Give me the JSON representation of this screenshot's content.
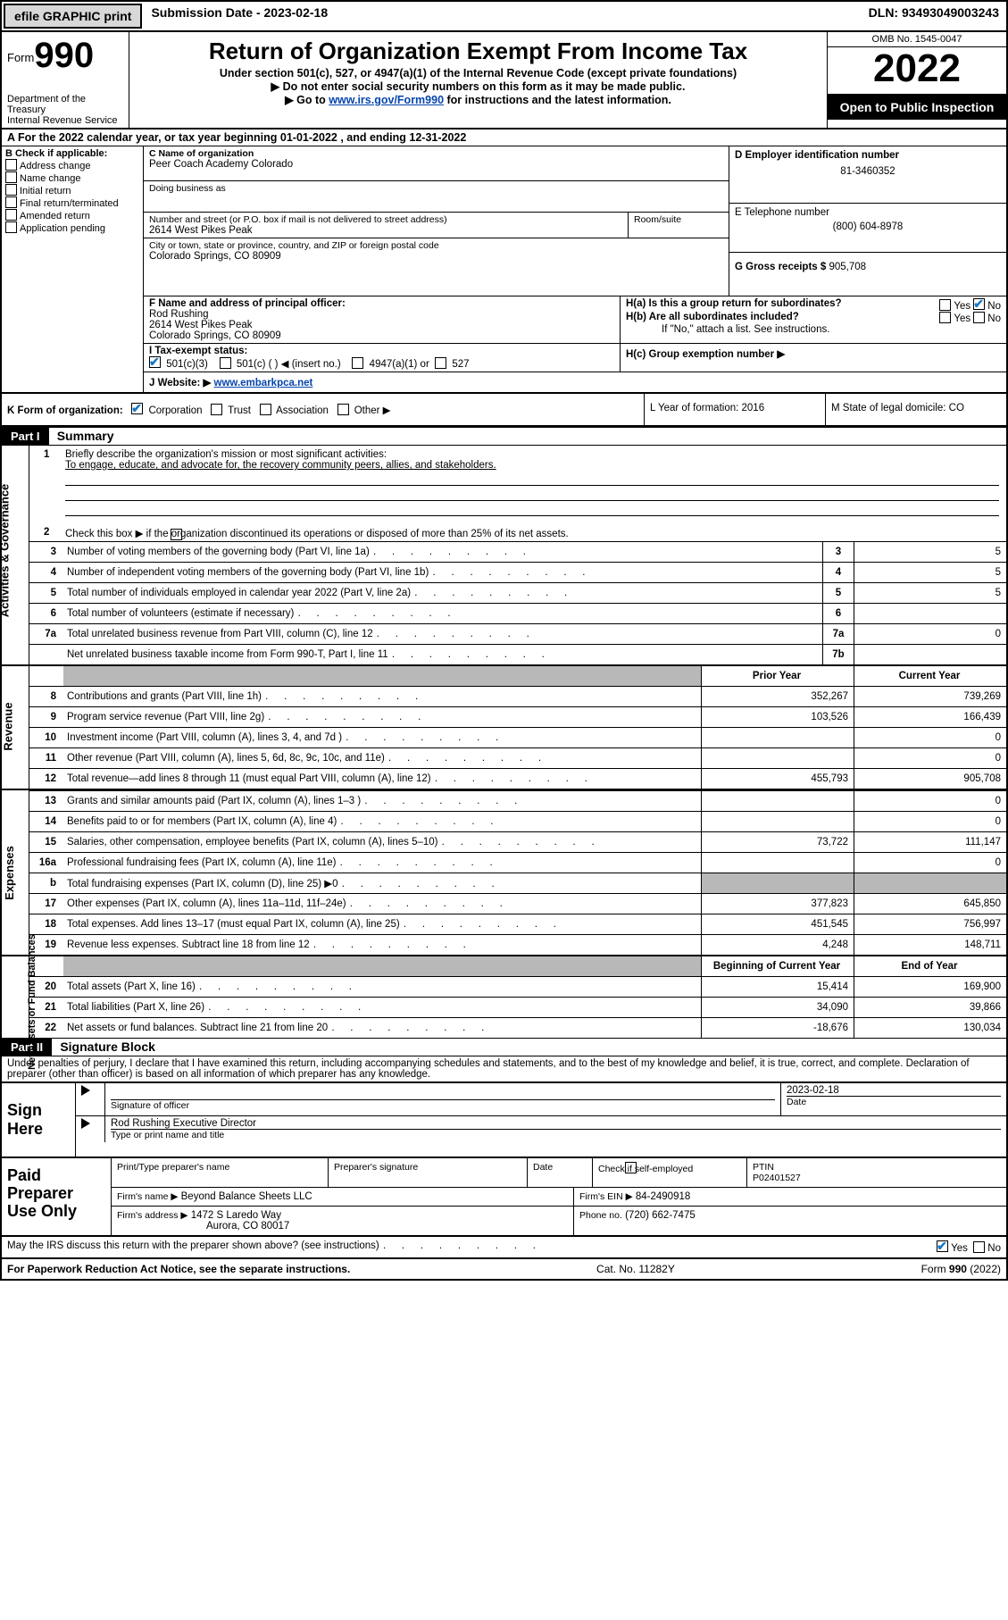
{
  "topbar": {
    "efile": "efile GRAPHIC print",
    "sub_label": "Submission Date -",
    "sub_date": "2023-02-18",
    "dln_label": "DLN:",
    "dln": "93493049003243"
  },
  "header": {
    "form_word": "Form",
    "form_num": "990",
    "dept": "Department of the Treasury",
    "irs": "Internal Revenue Service",
    "title": "Return of Organization Exempt From Income Tax",
    "sub1": "Under section 501(c), 527, or 4947(a)(1) of the Internal Revenue Code (except private foundations)",
    "sub2": "▶ Do not enter social security numbers on this form as it may be made public.",
    "sub3_pre": "▶ Go to ",
    "sub3_link": "www.irs.gov/Form990",
    "sub3_post": " for instructions and the latest information.",
    "omb": "OMB No. 1545-0047",
    "year": "2022",
    "inspect": "Open to Public Inspection"
  },
  "lineA": "A For the 2022 calendar year, or tax year beginning 01-01-2022    , and ending 12-31-2022",
  "boxB": {
    "title": "B Check if applicable:",
    "items": [
      "Address change",
      "Name change",
      "Initial return",
      "Final return/terminated",
      "Amended return",
      "Application pending"
    ]
  },
  "boxC": {
    "lbl_name": "C Name of organization",
    "name": "Peer Coach Academy Colorado",
    "dba_lbl": "Doing business as",
    "dba": "",
    "addr_lbl": "Number and street (or P.O. box if mail is not delivered to street address)",
    "room_lbl": "Room/suite",
    "addr": "2614 West Pikes Peak",
    "city_lbl": "City or town, state or province, country, and ZIP or foreign postal code",
    "city": "Colorado Springs, CO  80909"
  },
  "boxD": {
    "lbl": "D Employer identification number",
    "val": "81-3460352"
  },
  "boxE": {
    "lbl": "E Telephone number",
    "val": "(800) 604-8978"
  },
  "boxG": {
    "lbl": "G Gross receipts $",
    "val": "905,708"
  },
  "boxF": {
    "lbl": "F Name and address of principal officer:",
    "name": "Rod Rushing",
    "addr1": "2614 West Pikes Peak",
    "addr2": "Colorado Springs, CO  80909"
  },
  "boxH": {
    "a": "H(a)  Is this a group return for subordinates?",
    "yes": "Yes",
    "no": "No",
    "b": "H(b)  Are all subordinates included?",
    "b2": "If \"No,\" attach a list. See instructions.",
    "c": "H(c)  Group exemption number ▶"
  },
  "rowI": {
    "lbl": "I    Tax-exempt status:",
    "opt1": "501(c)(3)",
    "opt2": "501(c) (  ) ◀ (insert no.)",
    "opt3": "4947(a)(1) or",
    "opt4": "527"
  },
  "rowJ": {
    "lbl": "J    Website: ▶",
    "val": "www.embarkpca.net"
  },
  "rowK": {
    "lbl": "K Form of organization:",
    "opts": [
      "Corporation",
      "Trust",
      "Association",
      "Other ▶"
    ],
    "L": "L Year of formation: 2016",
    "M": "M State of legal domicile: CO"
  },
  "partI": {
    "part": "Part I",
    "title": "Summary",
    "side_labels": [
      "Activities & Governance",
      "Revenue",
      "Expenses",
      "Net Assets or Fund Balances"
    ],
    "line1_lbl": "Briefly describe the organization's mission or most significant activities:",
    "line1_val": "To engage, educate, and advocate for, the recovery community peers, allies, and stakeholders.",
    "line2": "Check this box ▶         if the organization discontinued its operations or disposed of more than 25% of its net assets.",
    "rows_top": [
      {
        "n": "3",
        "t": "Number of voting members of the governing body (Part VI, line 1a)",
        "c": "3",
        "v": "5"
      },
      {
        "n": "4",
        "t": "Number of independent voting members of the governing body (Part VI, line 1b)",
        "c": "4",
        "v": "5"
      },
      {
        "n": "5",
        "t": "Total number of individuals employed in calendar year 2022 (Part V, line 2a)",
        "c": "5",
        "v": "5"
      },
      {
        "n": "6",
        "t": "Total number of volunteers (estimate if necessary)",
        "c": "6",
        "v": ""
      },
      {
        "n": "7a",
        "t": "Total unrelated business revenue from Part VIII, column (C), line 12",
        "c": "7a",
        "v": "0"
      },
      {
        "n": "",
        "t": "Net unrelated business taxable income from Form 990-T, Part I, line 11",
        "c": "7b",
        "v": ""
      }
    ],
    "col_hdr_prior": "Prior Year",
    "col_hdr_curr": "Current Year",
    "rows_rev": [
      {
        "n": "8",
        "t": "Contributions and grants (Part VIII, line 1h)",
        "p": "352,267",
        "c": "739,269"
      },
      {
        "n": "9",
        "t": "Program service revenue (Part VIII, line 2g)",
        "p": "103,526",
        "c": "166,439"
      },
      {
        "n": "10",
        "t": "Investment income (Part VIII, column (A), lines 3, 4, and 7d )",
        "p": "",
        "c": "0"
      },
      {
        "n": "11",
        "t": "Other revenue (Part VIII, column (A), lines 5, 6d, 8c, 9c, 10c, and 11e)",
        "p": "",
        "c": "0"
      },
      {
        "n": "12",
        "t": "Total revenue—add lines 8 through 11 (must equal Part VIII, column (A), line 12)",
        "p": "455,793",
        "c": "905,708"
      }
    ],
    "rows_exp": [
      {
        "n": "13",
        "t": "Grants and similar amounts paid (Part IX, column (A), lines 1–3 )",
        "p": "",
        "c": "0"
      },
      {
        "n": "14",
        "t": "Benefits paid to or for members (Part IX, column (A), line 4)",
        "p": "",
        "c": "0"
      },
      {
        "n": "15",
        "t": "Salaries, other compensation, employee benefits (Part IX, column (A), lines 5–10)",
        "p": "73,722",
        "c": "111,147"
      },
      {
        "n": "16a",
        "t": "Professional fundraising fees (Part IX, column (A), line 11e)",
        "p": "",
        "c": "0"
      },
      {
        "n": "b",
        "t": "Total fundraising expenses (Part IX, column (D), line 25) ▶0",
        "p": "grey",
        "c": "grey"
      },
      {
        "n": "17",
        "t": "Other expenses (Part IX, column (A), lines 11a–11d, 11f–24e)",
        "p": "377,823",
        "c": "645,850"
      },
      {
        "n": "18",
        "t": "Total expenses. Add lines 13–17 (must equal Part IX, column (A), line 25)",
        "p": "451,545",
        "c": "756,997"
      },
      {
        "n": "19",
        "t": "Revenue less expenses. Subtract line 18 from line 12",
        "p": "4,248",
        "c": "148,711"
      }
    ],
    "col_hdr_beg": "Beginning of Current Year",
    "col_hdr_end": "End of Year",
    "rows_net": [
      {
        "n": "20",
        "t": "Total assets (Part X, line 16)",
        "p": "15,414",
        "c": "169,900"
      },
      {
        "n": "21",
        "t": "Total liabilities (Part X, line 26)",
        "p": "34,090",
        "c": "39,866"
      },
      {
        "n": "22",
        "t": "Net assets or fund balances. Subtract line 21 from line 20",
        "p": "-18,676",
        "c": "130,034"
      }
    ]
  },
  "partII": {
    "part": "Part II",
    "title": "Signature Block",
    "decl": "Under penalties of perjury, I declare that I have examined this return, including accompanying schedules and statements, and to the best of my knowledge and belief, it is true, correct, and complete. Declaration of preparer (other than officer) is based on all information of which preparer has any knowledge.",
    "sign_here": "Sign Here",
    "sig_of": "Signature of officer",
    "date_lbl": "Date",
    "sig_date": "2023-02-18",
    "officer": "Rod Rushing  Executive Director",
    "officer_sub": "Type or print name and title",
    "paid": "Paid Preparer Use Only",
    "prep_name_lbl": "Print/Type preparer's name",
    "prep_sig_lbl": "Preparer's signature",
    "check_self": "Check          if self-employed",
    "ptin_lbl": "PTIN",
    "ptin": "P02401527",
    "firm_name_lbl": "Firm's name    ▶",
    "firm_name": "Beyond Balance Sheets LLC",
    "firm_ein_lbl": "Firm's EIN ▶",
    "firm_ein": "84-2490918",
    "firm_addr_lbl": "Firm's address ▶",
    "firm_addr1": "1472 S Laredo Way",
    "firm_addr2": "Aurora, CO  80017",
    "firm_phone_lbl": "Phone no.",
    "firm_phone": "(720) 662-7475",
    "discuss": "May the IRS discuss this return with the preparer shown above? (see instructions)",
    "yes": "Yes",
    "no": "No"
  },
  "footer": {
    "left": "For Paperwork Reduction Act Notice, see the separate instructions.",
    "mid": "Cat. No. 11282Y",
    "right": "Form 990 (2022)"
  }
}
